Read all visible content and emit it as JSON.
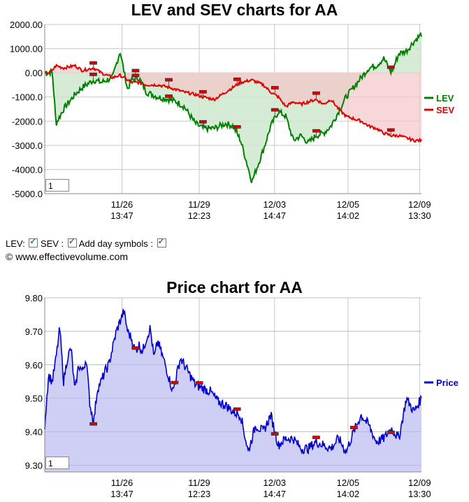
{
  "lev_chart": {
    "title": "LEV and SEV charts for AA",
    "y_ticks": [
      "2000.00",
      "1000.00",
      "0.00",
      "-1000.0",
      "-2000.0",
      "-3000.0",
      "-4000.0",
      "-5000.0"
    ],
    "x_ticks": [
      {
        "date": "11/26",
        "time": "13:47"
      },
      {
        "date": "11/29",
        "time": "12:23"
      },
      {
        "date": "12/03",
        "time": "14:47"
      },
      {
        "date": "12/05",
        "time": "14:02"
      },
      {
        "date": "12/09",
        "time": "13:30"
      }
    ],
    "legend": [
      {
        "name": "LEV",
        "color": "#008000"
      },
      {
        "name": "SEV",
        "color": "#e00000"
      }
    ],
    "zoom_value": "1"
  },
  "controls": {
    "lev_label": "LEV:",
    "sev_label": "SEV :",
    "day_symbols_label": "Add day symbols :"
  },
  "copyright": "© www.effectivevolume.com",
  "price_chart": {
    "title": "Price chart for AA",
    "y_ticks": [
      "9.80",
      "9.70",
      "9.60",
      "9.50",
      "9.40",
      "9.30"
    ],
    "x_ticks": [
      {
        "date": "11/26",
        "time": "13:47"
      },
      {
        "date": "11/29",
        "time": "12:23"
      },
      {
        "date": "12/03",
        "time": "14:47"
      },
      {
        "date": "12/05",
        "time": "14:02"
      },
      {
        "date": "12/09",
        "time": "13:30"
      }
    ],
    "legend": [
      {
        "name": "Price",
        "color": "#0000cc"
      }
    ],
    "zoom_value": "1"
  },
  "chart_data": [
    {
      "type": "line",
      "title": "LEV and SEV charts for AA",
      "ylim": [
        -5000,
        2000
      ],
      "x": [
        0,
        0.01,
        0.02,
        0.03,
        0.05,
        0.08,
        0.1,
        0.13,
        0.15,
        0.18,
        0.2,
        0.22,
        0.23,
        0.25,
        0.27,
        0.3,
        0.33,
        0.35,
        0.37,
        0.4,
        0.42,
        0.45,
        0.48,
        0.5,
        0.52,
        0.55,
        0.58,
        0.6,
        0.62,
        0.64,
        0.66,
        0.68,
        0.7,
        0.72,
        0.74,
        0.76,
        0.78,
        0.8,
        0.82,
        0.84,
        0.86,
        0.88,
        0.9,
        0.92,
        0.94,
        0.96,
        0.98,
        1.0
      ],
      "x_tick_labels": [
        "11/26 13:47",
        "11/29 12:23",
        "12/03 14:47",
        "12/05 14:02",
        "12/09 13:30"
      ],
      "series": [
        {
          "name": "LEV",
          "values": [
            0,
            0,
            50,
            -2100,
            -1500,
            -900,
            -600,
            -300,
            -400,
            -200,
            900,
            -700,
            -300,
            -200,
            -800,
            -1000,
            -1100,
            -1200,
            -1400,
            -2100,
            -2300,
            -2300,
            -2100,
            -2200,
            -2800,
            -4500,
            -3200,
            -2200,
            -1600,
            -1800,
            -2800,
            -2600,
            -2900,
            -2600,
            -2500,
            -2200,
            -1600,
            -1000,
            -600,
            -200,
            200,
            300,
            600,
            0,
            800,
            900,
            1300,
            1600
          ]
        },
        {
          "name": "SEV",
          "values": [
            0,
            0,
            100,
            300,
            200,
            300,
            100,
            200,
            0,
            -200,
            -100,
            -300,
            -400,
            -400,
            -500,
            -500,
            -600,
            -700,
            -800,
            -900,
            -1000,
            -1100,
            -800,
            -600,
            -400,
            -300,
            -500,
            -800,
            -1000,
            -1400,
            -1200,
            -1300,
            -1200,
            -1100,
            -1300,
            -1100,
            -1500,
            -1800,
            -1900,
            -2000,
            -2200,
            -2300,
            -2500,
            -2600,
            -2600,
            -2700,
            -2800,
            -2800
          ]
        }
      ]
    },
    {
      "type": "area",
      "title": "Price chart for AA",
      "ylim": [
        9.28,
        9.8
      ],
      "x": [
        0,
        0.01,
        0.02,
        0.03,
        0.04,
        0.05,
        0.06,
        0.07,
        0.08,
        0.09,
        0.1,
        0.11,
        0.12,
        0.13,
        0.14,
        0.15,
        0.16,
        0.17,
        0.18,
        0.19,
        0.2,
        0.21,
        0.22,
        0.23,
        0.24,
        0.25,
        0.26,
        0.27,
        0.28,
        0.29,
        0.3,
        0.32,
        0.34,
        0.36,
        0.38,
        0.4,
        0.42,
        0.44,
        0.46,
        0.48,
        0.5,
        0.52,
        0.54,
        0.56,
        0.58,
        0.6,
        0.62,
        0.64,
        0.66,
        0.68,
        0.7,
        0.72,
        0.74,
        0.76,
        0.78,
        0.8,
        0.82,
        0.84,
        0.86,
        0.88,
        0.9,
        0.92,
        0.94,
        0.96,
        0.98,
        1.0
      ],
      "x_tick_labels": [
        "11/26 13:47",
        "11/29 12:23",
        "12/03 14:47",
        "12/05 14:02",
        "12/09 13:30"
      ],
      "series": [
        {
          "name": "Price",
          "values": [
            9.42,
            9.57,
            9.55,
            9.62,
            9.71,
            9.55,
            9.62,
            9.65,
            9.52,
            9.6,
            9.58,
            9.62,
            9.48,
            9.43,
            9.53,
            9.55,
            9.58,
            9.6,
            9.65,
            9.7,
            9.73,
            9.76,
            9.7,
            9.68,
            9.64,
            9.66,
            9.64,
            9.68,
            9.71,
            9.62,
            9.67,
            9.6,
            9.52,
            9.62,
            9.58,
            9.54,
            9.53,
            9.52,
            9.49,
            9.48,
            9.46,
            9.45,
            9.34,
            9.42,
            9.4,
            9.45,
            9.36,
            9.38,
            9.38,
            9.35,
            9.35,
            9.37,
            9.36,
            9.35,
            9.38,
            9.34,
            9.4,
            9.45,
            9.42,
            9.37,
            9.38,
            9.41,
            9.38,
            9.5,
            9.46,
            9.5
          ]
        }
      ]
    }
  ]
}
